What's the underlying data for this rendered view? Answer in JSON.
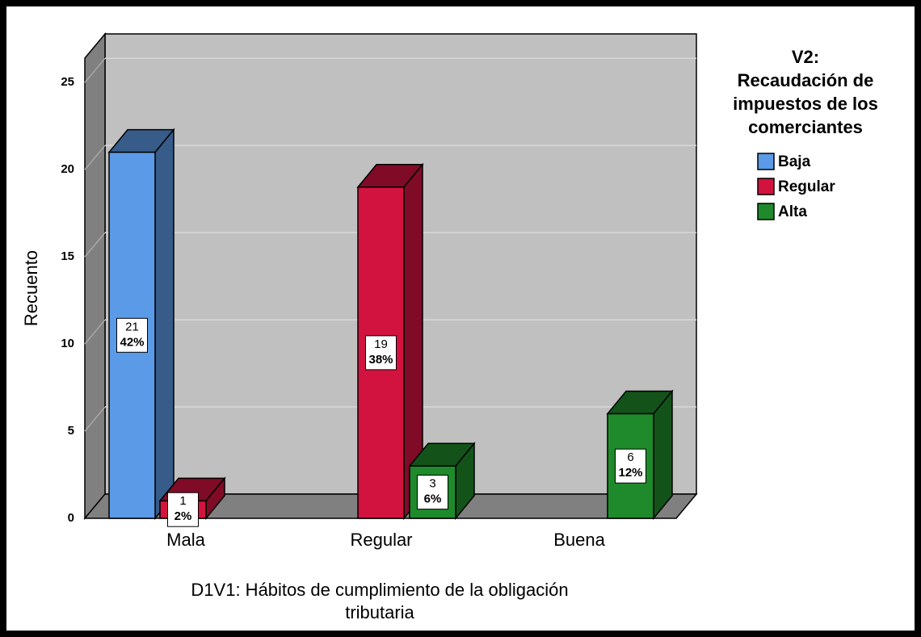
{
  "chart_data": {
    "type": "bar3d",
    "y_label": "Recuento",
    "x_label": [
      "D1V1: Hábitos de cumplimiento de la obligación",
      "tributaria"
    ],
    "legend_title": [
      "V2:",
      "Recaudación de",
      "impuestos de los",
      "comerciantes"
    ],
    "categories": [
      "Mala",
      "Regular",
      "Buena"
    ],
    "series": [
      {
        "name": "Baja",
        "color": "#5b9ae6",
        "values": [
          21,
          null,
          null
        ],
        "percent_labels": [
          "42%",
          null,
          null
        ]
      },
      {
        "name": "Regular",
        "color": "#d3133f",
        "values": [
          1,
          19,
          null
        ],
        "percent_labels": [
          "2%",
          "38%",
          null
        ]
      },
      {
        "name": "Alta",
        "color": "#1f8a2b",
        "values": [
          null,
          3,
          6
        ],
        "percent_labels": [
          null,
          "6%",
          "12%"
        ]
      }
    ],
    "ylim": [
      0,
      26.4
    ],
    "yticks": [
      0,
      5,
      10,
      15,
      20,
      25
    ],
    "grid": true,
    "legend": "right"
  }
}
